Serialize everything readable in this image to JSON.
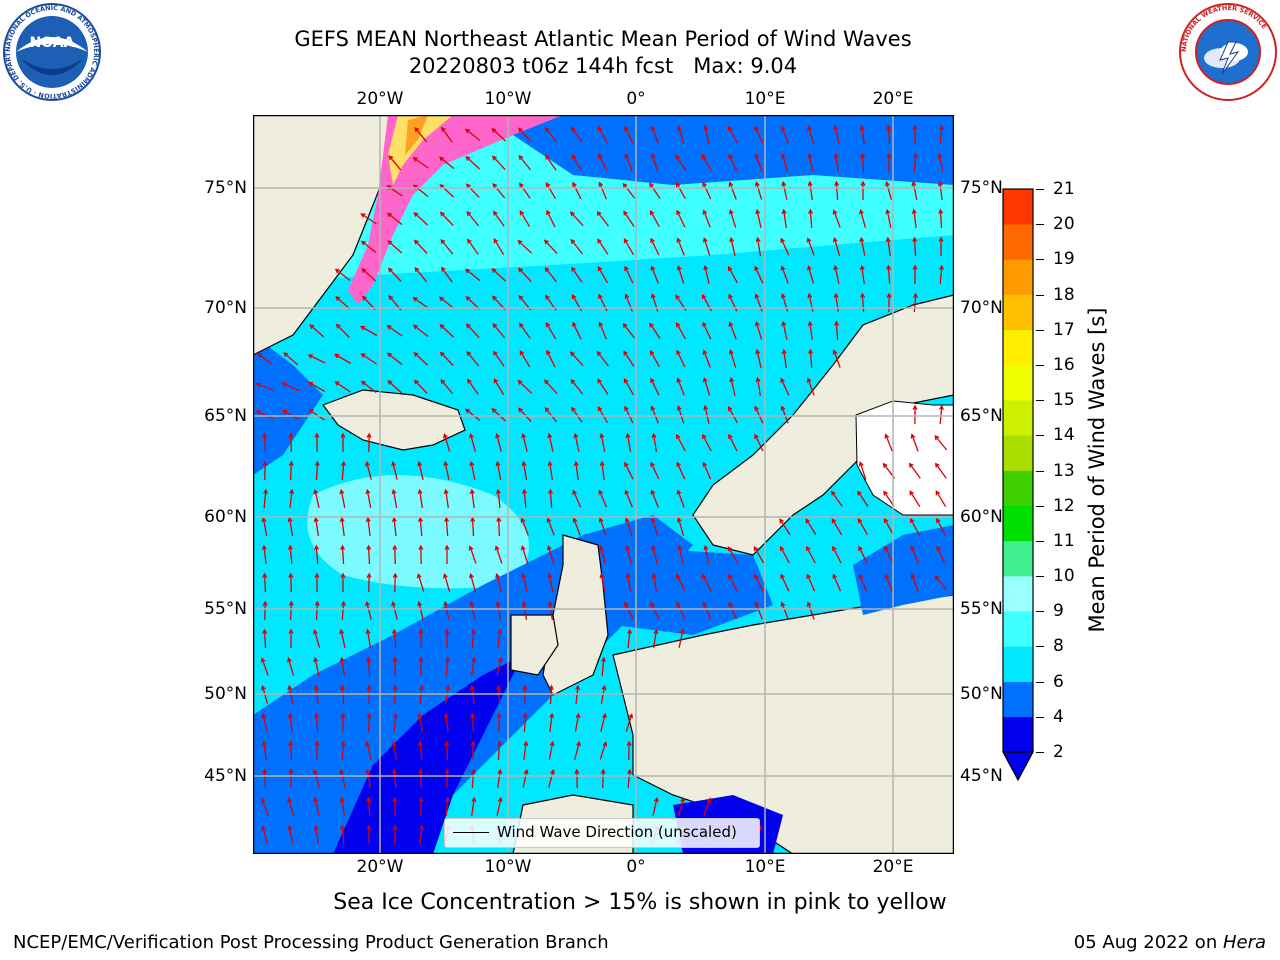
{
  "title": {
    "line1": "GEFS MEAN Northeast Atlantic Mean Period of Wind Waves",
    "line2": "20220803 t06z 144h fcst   Max: 9.04"
  },
  "logos": {
    "left": {
      "icon": "noaa-logo-icon",
      "text": "NOAA",
      "ring_text": "NATIONAL OCEANIC AND ATMOSPHERIC ADMINISTRATION · U.S. DEPARTMENT OF COMMERCE"
    },
    "right": {
      "icon": "nws-logo-icon",
      "ring_text": "NATIONAL WEATHER SERVICE"
    }
  },
  "map": {
    "lon_ticks": [
      "20°W",
      "10°W",
      "0°",
      "10°E",
      "20°E"
    ],
    "lat_ticks": [
      "75°N",
      "70°N",
      "65°N",
      "60°N",
      "55°N",
      "50°N",
      "45°N"
    ],
    "legend_label": "Wind Wave Direction (unscaled)",
    "colors": {
      "land": "#efedde",
      "ice_pink": "#ff66cc",
      "ice_yellow": "#ffe066",
      "arrow": "#dd0000",
      "grid": "#b4b4b4",
      "coast": "#000000"
    }
  },
  "colorbar": {
    "label": "Mean Period of Wind Waves [s]",
    "ticks": [
      "2",
      "4",
      "6",
      "8",
      "9",
      "10",
      "11",
      "12",
      "13",
      "14",
      "15",
      "16",
      "17",
      "18",
      "19",
      "20",
      "21"
    ],
    "colors": [
      "#0000ee",
      "#0070ff",
      "#00e8ff",
      "#40ffff",
      "#9affff",
      "#40f090",
      "#00e000",
      "#40d000",
      "#aade00",
      "#ccf000",
      "#f0ff00",
      "#ffee00",
      "#ffc000",
      "#ff9a00",
      "#ff6a00",
      "#ff3800",
      "#ff0000"
    ]
  },
  "footer": {
    "note": "Sea Ice Concentration > 15% is shown in pink to yellow",
    "left": "NCEP/EMC/Verification Post Processing Product Generation Branch",
    "date": "05 Aug 2022 on ",
    "machine": "Hera"
  }
}
